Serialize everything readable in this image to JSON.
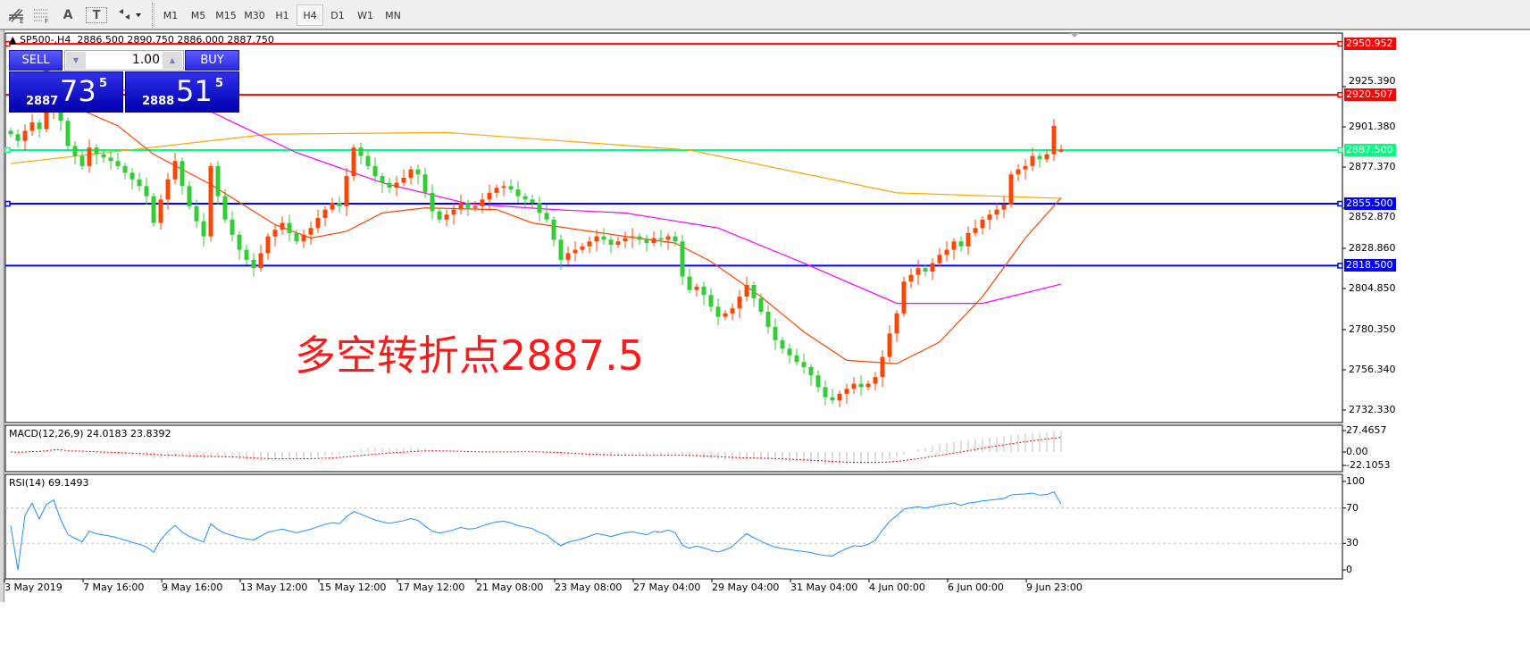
{
  "toolbar": {
    "tools": [
      {
        "icon": "fibonacci-expansion-icon",
        "sub": "E"
      },
      {
        "icon": "fibonacci-lines-icon",
        "sub": "F"
      },
      {
        "icon": "text-icon",
        "label": "A"
      },
      {
        "icon": "text-label-icon",
        "label": "T"
      },
      {
        "icon": "arrows-dropdown-icon"
      }
    ],
    "timeframes": [
      "M1",
      "M5",
      "M15",
      "M30",
      "H1",
      "H4",
      "D1",
      "W1",
      "MN"
    ],
    "active_timeframe": "H4"
  },
  "header": {
    "symbol": "SP500-,H4",
    "open": "2886.500",
    "high": "2890.750",
    "low": "2886.000",
    "close": "2887.750"
  },
  "trade_panel": {
    "sell_label": "SELL",
    "buy_label": "BUY",
    "lots": "1.00",
    "sell": {
      "prefix": "2887",
      "big": "73",
      "sup": "5"
    },
    "buy": {
      "prefix": "2888",
      "big": "51",
      "sup": "5"
    }
  },
  "annotation": "多空转折点2887.5",
  "colors": {
    "bull": "#ff4500",
    "bear": "#32cd32",
    "ma_fast": "#ff4500",
    "ma_mid": "#ff00ff",
    "ma_slow": "#ffa500",
    "macd_hist": "#c0c0c0",
    "macd_signal": "#ff0000",
    "rsi": "#1e90ff"
  },
  "chart_data": {
    "type": "candlestick",
    "symbol": "SP500-",
    "timeframe": "H4",
    "ylim": [
      2722,
      2958
    ],
    "y_ticks": [
      "2925.390",
      "2901.380",
      "2877.370",
      "2852.870",
      "2828.860",
      "2804.850",
      "2780.350",
      "2756.340",
      "2732.330"
    ],
    "x_ticks": [
      "3 May 2019",
      "7 May 16:00",
      "9 May 16:00",
      "13 May 12:00",
      "15 May 12:00",
      "17 May 12:00",
      "21 May 08:00",
      "23 May 08:00",
      "27 May 04:00",
      "29 May 04:00",
      "31 May 04:00",
      "4 Jun 00:00",
      "6 Jun 00:00",
      "9 Jun 23:00"
    ],
    "closes": [
      2897,
      2893,
      2899,
      2904,
      2900,
      2910,
      2916,
      2905,
      2890,
      2884,
      2878,
      2889,
      2885,
      2883,
      2881,
      2878,
      2874,
      2870,
      2866,
      2860,
      2844,
      2858,
      2870,
      2881,
      2866,
      2854,
      2845,
      2836,
      2878,
      2860,
      2846,
      2837,
      2828,
      2822,
      2817,
      2826,
      2836,
      2840,
      2844,
      2838,
      2833,
      2837,
      2841,
      2847,
      2852,
      2856,
      2854,
      2872,
      2889,
      2884,
      2878,
      2872,
      2868,
      2865,
      2868,
      2871,
      2876,
      2873,
      2862,
      2851,
      2846,
      2849,
      2852,
      2856,
      2853,
      2854,
      2858,
      2862,
      2865,
      2866,
      2864,
      2860,
      2858,
      2856,
      2850,
      2846,
      2834,
      2822,
      2826,
      2828,
      2830,
      2833,
      2836,
      2834,
      2831,
      2833,
      2835,
      2836,
      2834,
      2832,
      2835,
      2834,
      2836,
      2833,
      2812,
      2804,
      2806,
      2801,
      2794,
      2788,
      2790,
      2793,
      2800,
      2807,
      2799,
      2791,
      2782,
      2774,
      2769,
      2765,
      2761,
      2758,
      2753,
      2746,
      2740,
      2738,
      2742,
      2745,
      2748,
      2746,
      2748,
      2752,
      2764,
      2778,
      2790,
      2809,
      2813,
      2817,
      2815,
      2820,
      2825,
      2828,
      2833,
      2830,
      2838,
      2841,
      2846,
      2849,
      2852,
      2855,
      2873,
      2876,
      2878,
      2884,
      2882,
      2885,
      2902,
      2887.75
    ],
    "last_bar": {
      "open": 2886.5,
      "high": 2890.75,
      "low": 2886.0,
      "close": 2887.75
    },
    "moving_averages": [
      {
        "color": "#ffa500",
        "points": [
          [
            0,
            2879.5
          ],
          [
            36,
            2897
          ],
          [
            61,
            2898
          ],
          [
            95,
            2887.5
          ],
          [
            124,
            2862
          ],
          [
            147,
            2858.7
          ]
        ]
      },
      {
        "color": "#ff00ff",
        "points": [
          [
            0,
            2940
          ],
          [
            28,
            2910.5
          ],
          [
            40,
            2886
          ],
          [
            52,
            2868
          ],
          [
            64,
            2855.5
          ],
          [
            76,
            2852
          ],
          [
            86,
            2850
          ],
          [
            99,
            2841
          ],
          [
            111,
            2820
          ],
          [
            124,
            2796
          ],
          [
            136,
            2796
          ],
          [
            147,
            2807.5
          ]
        ]
      },
      {
        "color": "#ff4500",
        "points": [
          [
            0,
            2930
          ],
          [
            15,
            2902
          ],
          [
            20,
            2885
          ],
          [
            28,
            2867
          ],
          [
            37,
            2843
          ],
          [
            42,
            2835
          ],
          [
            47,
            2839
          ],
          [
            52,
            2850
          ],
          [
            58,
            2853
          ],
          [
            68,
            2852
          ],
          [
            73,
            2844
          ],
          [
            86,
            2836
          ],
          [
            93,
            2832
          ],
          [
            98,
            2821
          ],
          [
            105,
            2800
          ],
          [
            111,
            2779
          ],
          [
            117,
            2762
          ],
          [
            124,
            2760
          ],
          [
            130,
            2773
          ],
          [
            136,
            2800
          ],
          [
            142,
            2835
          ],
          [
            147,
            2859
          ]
        ]
      }
    ],
    "horizontal_lines": [
      {
        "price": "2950.952",
        "color": "#ff0000"
      },
      {
        "price": "2920.507",
        "color": "#ff0000"
      },
      {
        "price": "2887.500",
        "color": "#00ff7f"
      },
      {
        "price": "2855.500",
        "color": "#0000ff"
      },
      {
        "price": "2818.500",
        "color": "#0000ff"
      }
    ],
    "macd": {
      "label": "MACD(12,26,9)",
      "value": "24.0183",
      "signal": "23.8392",
      "ticks": [
        "27.4657",
        "0.00",
        "-22.1053"
      ],
      "ylim": [
        -22.1053,
        27.4657
      ]
    },
    "rsi": {
      "label": "RSI(14)",
      "value": "69.1493",
      "ticks": [
        "100",
        "70",
        "30",
        "0"
      ],
      "levels": [
        70,
        30
      ],
      "ylim": [
        0,
        100
      ]
    }
  }
}
